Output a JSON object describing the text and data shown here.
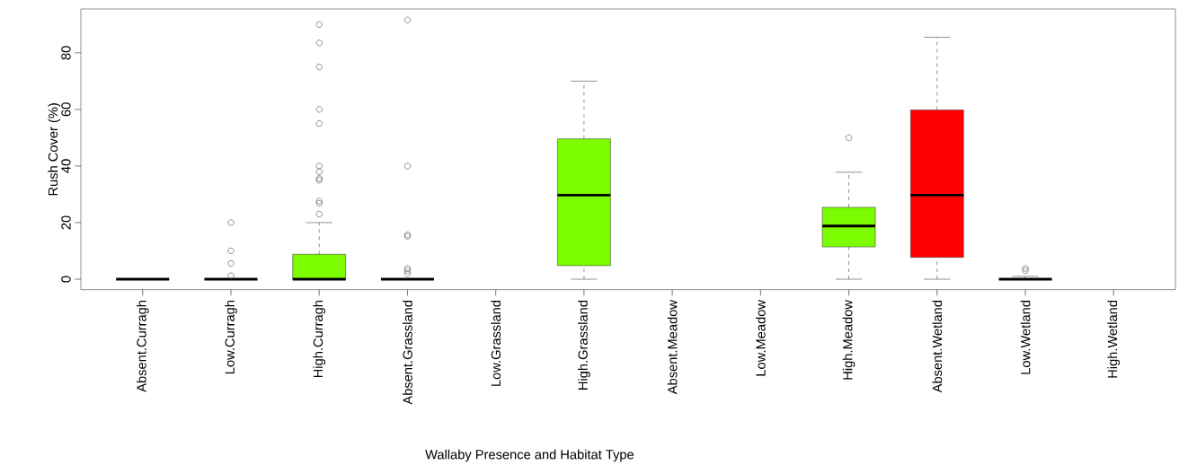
{
  "chart_data": {
    "type": "box",
    "xlabel": "Wallaby Presence and Habitat Type",
    "ylabel": "Rush Cover (%)",
    "categories": [
      "Absent.Curragh",
      "Low.Curragh",
      "High.Curragh",
      "Absent.Grassland",
      "Low.Grassland",
      "High.Grassland",
      "Absent.Meadow",
      "Low.Meadow",
      "High.Meadow",
      "Absent.Wetland",
      "Low.Wetland",
      "High.Wetland"
    ],
    "colors": [
      null,
      null,
      "#7cfc00",
      null,
      null,
      "#7cfc00",
      null,
      null,
      "#7cfc00",
      "#ff0000",
      null,
      null
    ],
    "boxes": [
      {
        "low": 0,
        "q1": 0,
        "median": 0,
        "q3": 0,
        "high": 0
      },
      {
        "low": 0,
        "q1": 0,
        "median": 0,
        "q3": 0,
        "high": 0,
        "outliers": [
          20,
          10,
          5.6,
          1.2
        ]
      },
      {
        "low": 0,
        "q1": 0,
        "median": 0,
        "q3": 8.8,
        "high": 20,
        "outliers": [
          90,
          83.5,
          75,
          60,
          55,
          40,
          38,
          35.6,
          35,
          27.6,
          26.8,
          23
        ]
      },
      {
        "low": 0,
        "q1": 0,
        "median": 0,
        "q3": 0,
        "high": 0,
        "outliers": [
          91.6,
          40,
          15.7,
          15.1,
          3.8,
          3,
          1.9
        ]
      },
      null,
      {
        "low": 0,
        "q1": 4.8,
        "median": 29.7,
        "q3": 49.6,
        "high": 70
      },
      null,
      null,
      {
        "low": 0,
        "q1": 11.4,
        "median": 18.8,
        "q3": 25.4,
        "high": 37.8,
        "outliers": [
          50
        ]
      },
      {
        "low": 0,
        "q1": 7.7,
        "median": 29.7,
        "q3": 59.8,
        "high": 85.5
      },
      {
        "low": 0,
        "q1": 0,
        "median": 0,
        "q3": 0,
        "high": 1,
        "outliers": [
          3.8,
          3
        ]
      },
      null
    ],
    "ylim": [
      -3.7,
      95.5
    ],
    "yticks": [
      0,
      20,
      40,
      60,
      80
    ],
    "grid": false
  }
}
